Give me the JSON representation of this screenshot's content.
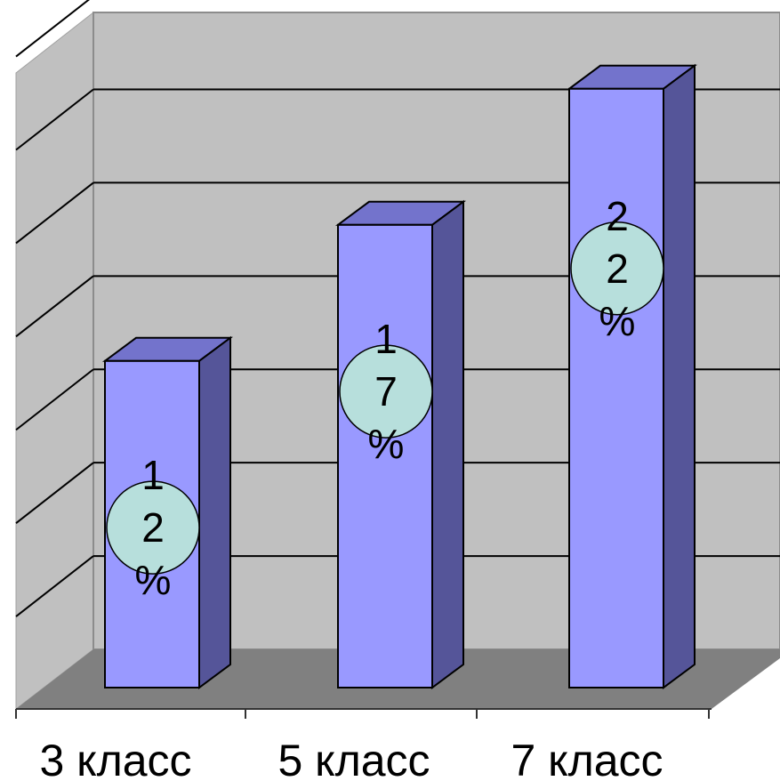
{
  "chart_data": {
    "type": "bar",
    "categories": [
      "3 класс",
      "5 класс",
      "7 класс"
    ],
    "values": [
      12,
      17,
      22
    ],
    "data_labels": [
      "12%",
      "17%",
      "22%"
    ],
    "unit": "%",
    "ylim": [
      0,
      24
    ],
    "grid": true,
    "title": "",
    "xlabel": "",
    "ylabel": ""
  },
  "colors": {
    "bar_front": "#9999ff",
    "bar_side": "#555599",
    "bar_top": "#7373cc",
    "wall": "#c0c0c0",
    "floor": "#808080",
    "label_bubble": "#b7dfdc"
  }
}
